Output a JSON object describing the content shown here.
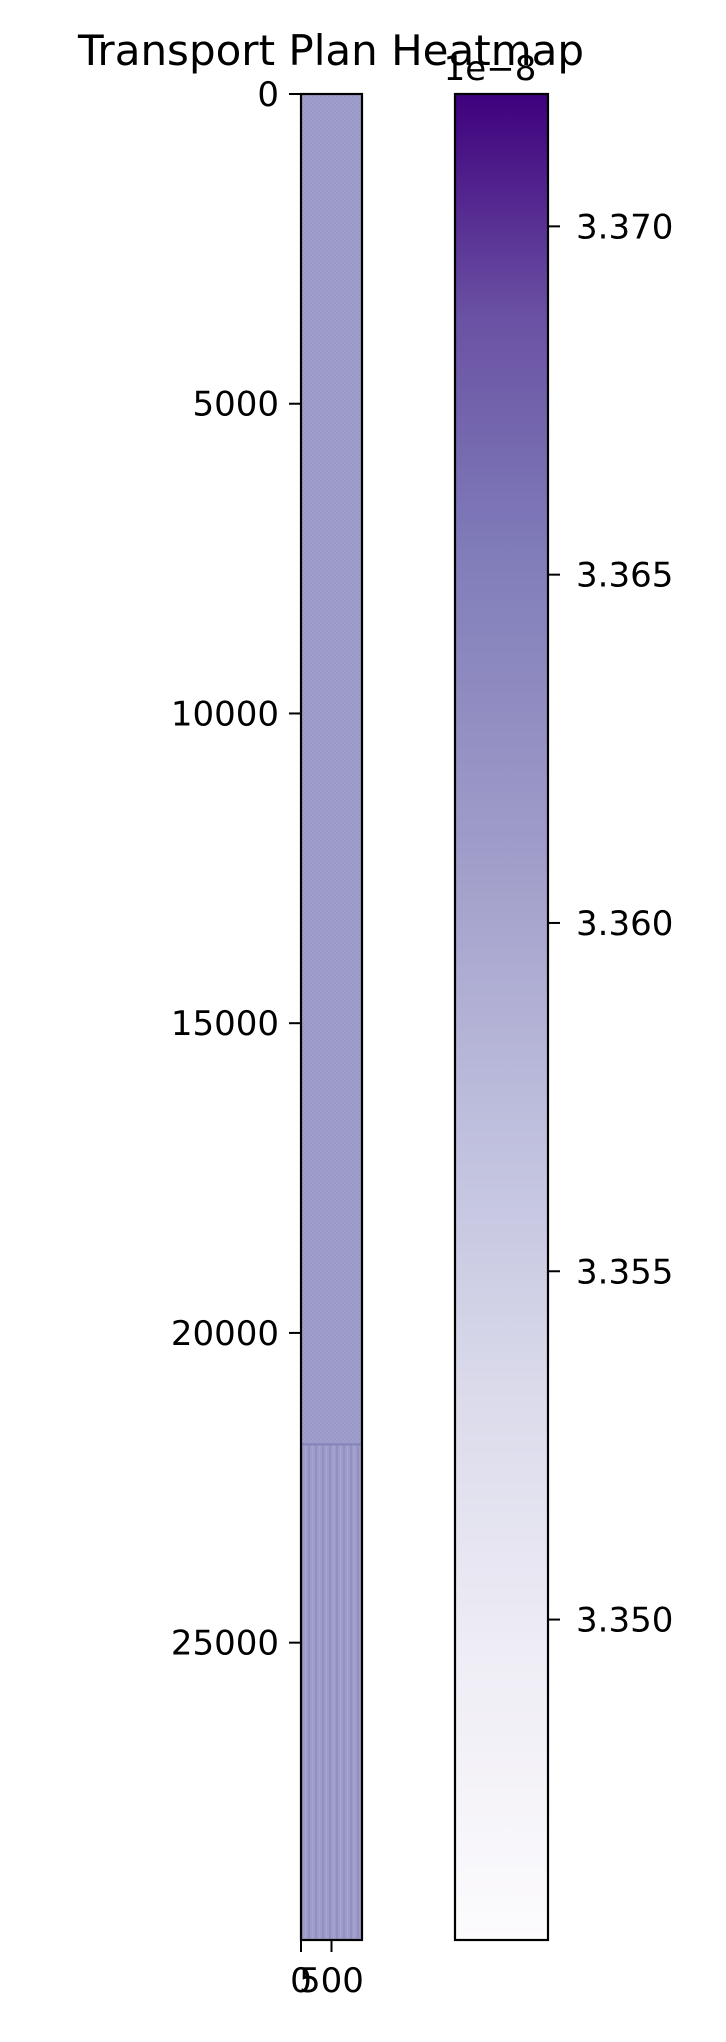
{
  "chart_data": {
    "type": "heatmap",
    "title": "Transport Plan Heatmap",
    "xlabel": "",
    "ylabel": "",
    "y_axis": {
      "range": [
        0,
        29800
      ],
      "ticks": [
        0,
        5000,
        10000,
        15000,
        20000,
        25000
      ],
      "tick_labels": [
        "0",
        "5000",
        "10000",
        "15000",
        "20000",
        "25000"
      ],
      "inverted": true
    },
    "x_axis": {
      "range": [
        0,
        1000
      ],
      "ticks": [
        0,
        500
      ],
      "tick_labels": [
        "0",
        "500"
      ]
    },
    "regions": [
      {
        "row_range": [
          0,
          21800
        ],
        "value": 3.3595e-08,
        "texture": "fine-checkered"
      },
      {
        "row_range": [
          21800,
          29800
        ],
        "value": 3.3597e-08,
        "texture": "vertical-stripes"
      }
    ],
    "colorbar": {
      "colormap": "Purples",
      "min": 3.3454e-08,
      "max": 3.3719e-08,
      "ticks": [
        3.35,
        3.355,
        3.36,
        3.365,
        3.37
      ],
      "tick_labels": [
        "3.350",
        "3.355",
        "3.360",
        "3.365",
        "3.370"
      ],
      "offset_text": "1e−8",
      "color_low": "#fcfbfd",
      "color_high": "#3f007d"
    }
  }
}
